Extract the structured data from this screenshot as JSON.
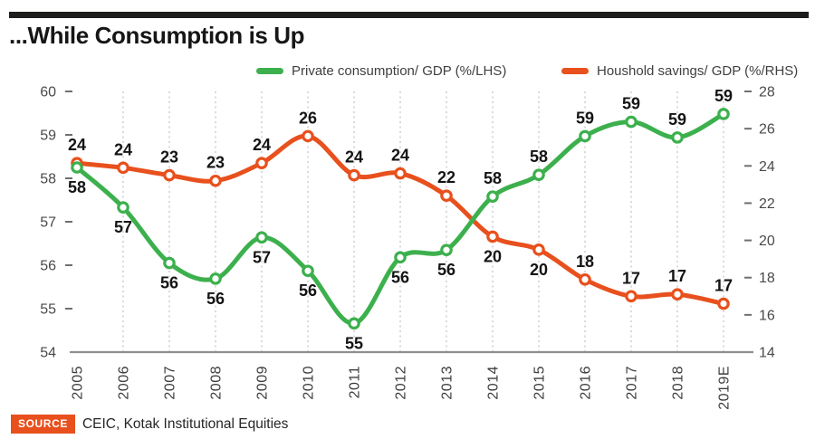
{
  "header": {
    "title": "...While Consumption is Up"
  },
  "legend": {
    "items": [
      {
        "label": "Private consumption/ GDP (%/LHS)",
        "color": "#3cb04d"
      },
      {
        "label": "Houshold savings/ GDP (%/RHS)",
        "color": "#e8501d"
      }
    ]
  },
  "chart_data": {
    "type": "line",
    "title": "...While Consumption is Up",
    "categories": [
      "2005",
      "2006",
      "2007",
      "2008",
      "2009",
      "2010",
      "2011",
      "2012",
      "2013",
      "2014",
      "2015",
      "2016",
      "2017",
      "2018",
      "2019E"
    ],
    "series": [
      {
        "name": "Private consumption/ GDP (%/LHS)",
        "axis": "left",
        "color": "#3cb04d",
        "values": [
          58,
          57,
          56,
          56,
          57,
          56,
          55,
          56,
          56,
          58,
          58,
          59,
          59,
          59,
          59
        ],
        "plot_values": [
          58.25,
          57.33,
          56.05,
          55.69,
          56.64,
          55.87,
          54.66,
          56.18,
          56.35,
          57.58,
          58.08,
          58.97,
          59.3,
          58.94,
          59.48
        ],
        "label_side": [
          "below",
          "below",
          "below",
          "below",
          "below",
          "below",
          "below",
          "below",
          "below",
          "above",
          "above",
          "above",
          "above",
          "above",
          "above"
        ]
      },
      {
        "name": "Houshold savings/ GDP (%/RHS)",
        "axis": "right",
        "color": "#e8501d",
        "values": [
          24,
          24,
          23,
          23,
          24,
          26,
          24,
          24,
          22,
          20,
          20,
          18,
          17,
          17,
          17
        ],
        "plot_values": [
          24.15,
          23.9,
          23.5,
          23.2,
          24.15,
          25.6,
          23.5,
          23.6,
          22.4,
          20.2,
          19.5,
          17.9,
          17.0,
          17.1,
          16.6
        ],
        "label_side": [
          "above",
          "above",
          "above",
          "above",
          "above",
          "above",
          "above",
          "above",
          "above",
          "below",
          "below",
          "above",
          "above",
          "above",
          "above"
        ]
      }
    ],
    "axes": {
      "left": {
        "min": 54,
        "max": 60,
        "ticks": [
          60,
          59,
          58,
          57,
          56,
          55,
          54
        ]
      },
      "right": {
        "min": 14,
        "max": 28,
        "ticks": [
          28,
          26,
          24,
          22,
          20,
          18,
          16,
          14
        ]
      }
    },
    "grid": {
      "vertical_dotted": true,
      "first_category_has_no_gridline": true
    },
    "legend_position": "top",
    "markers": "open-circle",
    "line_style": "smooth"
  },
  "footer": {
    "source_label": "SOURCE",
    "source_text": "CEIC, Kotak Institutional Equities",
    "badge_color": "#e8501d"
  }
}
